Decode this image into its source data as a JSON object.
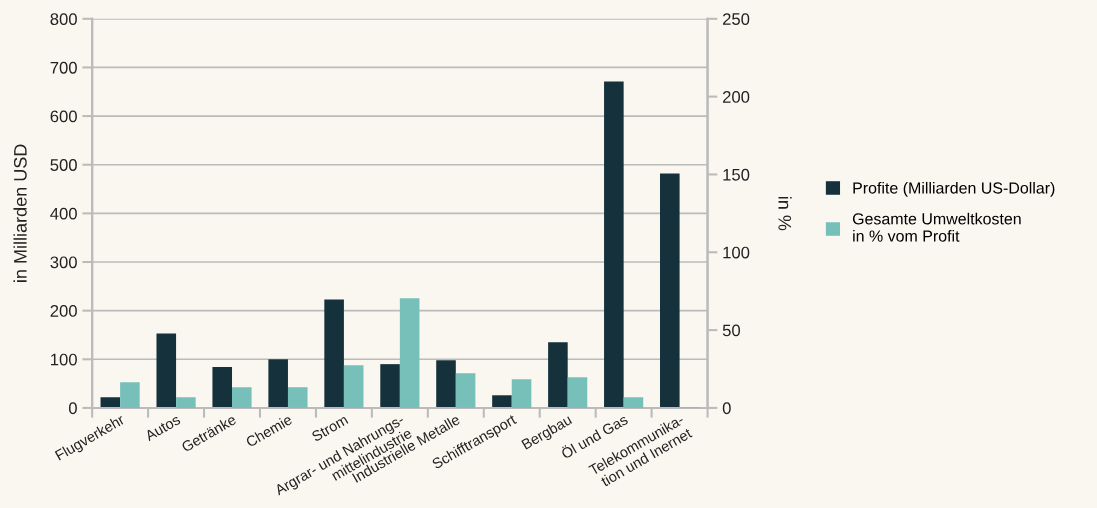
{
  "chart_data": {
    "type": "bar",
    "categories": [
      "Flugverkehr",
      "Autos",
      "Getränke",
      "Chemie",
      "Strom",
      "Argrar- und Nahrungs-\nmittelindustrie",
      "Industrielle Metalle",
      "Schifftransport",
      "Bergbau",
      "Öl und Gas",
      "Telekommunika-\ntion und Inernet"
    ],
    "series": [
      {
        "name": "Profite (Milliarden US-Dollar)",
        "color": "#15313b",
        "values": [
          22,
          153,
          84,
          100,
          223,
          90,
          98,
          26,
          135,
          671,
          482
        ]
      },
      {
        "name": "Gesamte Umweltkosten\nin % vom Profit",
        "color": "#76c0b9",
        "axis": "y2",
        "values": [
          16.5,
          6.9,
          13.3,
          13.3,
          27.4,
          70.4,
          22.3,
          18.4,
          19.7,
          6.9,
          0.5
        ]
      }
    ],
    "ylabel": "in Milliarden USD",
    "y2label": "in %",
    "ylim": [
      0,
      800
    ],
    "yticks": [
      0,
      100,
      200,
      300,
      400,
      500,
      600,
      700,
      800
    ],
    "y2lim": [
      0,
      250
    ],
    "y2ticks": [
      0,
      50,
      100,
      150,
      200,
      250
    ],
    "grid": "y",
    "legend": "right"
  }
}
